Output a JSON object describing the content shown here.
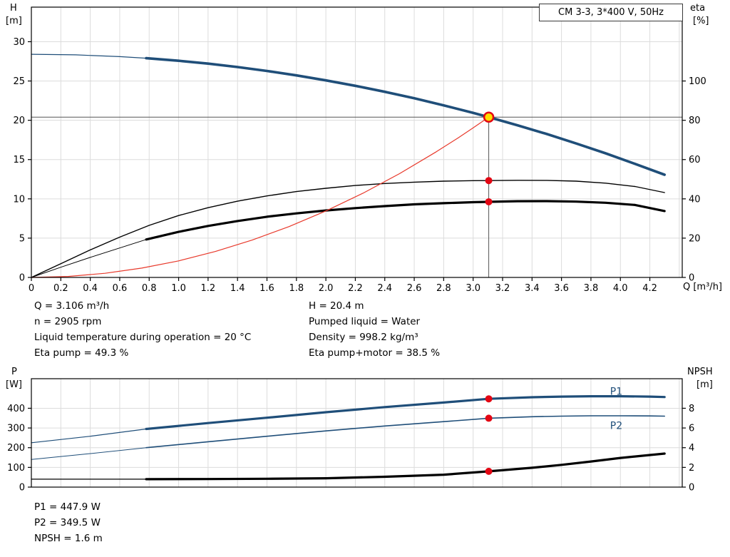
{
  "colors": {
    "curve_blue": "#1f4e79",
    "curve_black": "#000000",
    "system_red": "#e8392b",
    "marker_red": "#e30613",
    "duty_yellow": "#ffdd00",
    "grid": "#dcdcdc",
    "frame": "#000000",
    "crosshair": "#555555"
  },
  "operating_point_info": {
    "left": [
      "Q = 3.106 m³/h",
      "n = 2905 rpm",
      "Liquid temperature during operation = 20 °C",
      "Eta pump = 49.3 %"
    ],
    "right": [
      "H = 20.4 m",
      "Pumped liquid = Water",
      "Density = 998.2 kg/m³",
      "Eta pump+motor = 38.5 %"
    ]
  },
  "power_info": [
    "P1 = 447.9 W",
    "P2 = 349.5 W",
    "NPSH = 1.6 m"
  ],
  "chart_data": [
    {
      "type": "line",
      "name": "qh-eta-curves",
      "title": "CM 3-3, 3*400 V, 50Hz",
      "x_axis": {
        "label": "Q [m³/h]",
        "min": 0,
        "max": 4.42,
        "grid_step": 0.2,
        "tick_step": 0.2,
        "tick_max": 4.2
      },
      "y_left": {
        "label": "H [m]",
        "label_lines": [
          "H",
          "[m]"
        ],
        "min": 0,
        "max": 34.4,
        "ticks": [
          0,
          5,
          10,
          15,
          20,
          25,
          30
        ]
      },
      "y_right": {
        "label": "eta [%]",
        "label_lines": [
          "eta",
          "[%]"
        ],
        "min": 0,
        "max": 137.6,
        "ticks": [
          0,
          20,
          40,
          60,
          80,
          100
        ]
      },
      "duty_point": {
        "q": 3.106,
        "h": 20.4,
        "eta_pump": 49.3,
        "eta_pump_motor": 38.5
      },
      "ref_lines": [
        {
          "type": "v",
          "x": 3.106,
          "to": 20.4,
          "width": 1
        },
        {
          "type": "h",
          "y": 20.4,
          "width": 1
        }
      ],
      "series": [
        {
          "name": "pump-curve-extension",
          "axis": "left",
          "color": "#1f4e79",
          "width": 1.2,
          "points": [
            [
              0,
              28.4
            ],
            [
              0.3,
              28.33
            ],
            [
              0.6,
              28.1
            ],
            [
              0.78,
              27.9
            ]
          ]
        },
        {
          "name": "pump-curve",
          "axis": "left",
          "color": "#1f4e79",
          "width": 3.6,
          "points": [
            [
              0.78,
              27.9
            ],
            [
              1.0,
              27.57
            ],
            [
              1.2,
              27.21
            ],
            [
              1.4,
              26.78
            ],
            [
              1.6,
              26.28
            ],
            [
              1.8,
              25.71
            ],
            [
              2.0,
              25.08
            ],
            [
              2.2,
              24.39
            ],
            [
              2.4,
              23.63
            ],
            [
              2.6,
              22.8
            ],
            [
              2.8,
              21.9
            ],
            [
              3.0,
              20.94
            ],
            [
              3.106,
              20.4
            ],
            [
              3.3,
              19.37
            ],
            [
              3.5,
              18.25
            ],
            [
              3.7,
              17.05
            ],
            [
              3.9,
              15.79
            ],
            [
              4.1,
              14.45
            ],
            [
              4.3,
              13.07
            ]
          ]
        },
        {
          "name": "eta-pump-curve",
          "axis": "right",
          "color": "#000000",
          "width": 1.4,
          "points": [
            [
              0,
              0
            ],
            [
              0.2,
              7
            ],
            [
              0.4,
              14
            ],
            [
              0.6,
              20.5
            ],
            [
              0.8,
              26.5
            ],
            [
              1.0,
              31.5
            ],
            [
              1.2,
              35.5
            ],
            [
              1.4,
              38.8
            ],
            [
              1.6,
              41.5
            ],
            [
              1.8,
              43.7
            ],
            [
              2.0,
              45.4
            ],
            [
              2.2,
              46.8
            ],
            [
              2.4,
              47.8
            ],
            [
              2.6,
              48.5
            ],
            [
              2.8,
              49.0
            ],
            [
              3.0,
              49.25
            ],
            [
              3.106,
              49.3
            ],
            [
              3.3,
              49.45
            ],
            [
              3.5,
              49.4
            ],
            [
              3.7,
              49.0
            ],
            [
              3.9,
              48.0
            ],
            [
              4.1,
              46.3
            ],
            [
              4.3,
              43.2
            ]
          ]
        },
        {
          "name": "eta-pump-motor-extension",
          "axis": "right",
          "color": "#000000",
          "width": 1,
          "points": [
            [
              0,
              0
            ],
            [
              0.2,
              5.2
            ],
            [
              0.4,
              10.2
            ],
            [
              0.6,
              15.0
            ],
            [
              0.78,
              19.3
            ]
          ]
        },
        {
          "name": "eta-pump-motor-curve",
          "axis": "right",
          "color": "#000000",
          "width": 3.2,
          "points": [
            [
              0.78,
              19.3
            ],
            [
              1.0,
              23.2
            ],
            [
              1.2,
              26.2
            ],
            [
              1.4,
              28.7
            ],
            [
              1.6,
              30.9
            ],
            [
              1.8,
              32.6
            ],
            [
              2.0,
              34.1
            ],
            [
              2.2,
              35.3
            ],
            [
              2.4,
              36.3
            ],
            [
              2.6,
              37.2
            ],
            [
              2.8,
              37.8
            ],
            [
              3.0,
              38.3
            ],
            [
              3.106,
              38.5
            ],
            [
              3.3,
              38.8
            ],
            [
              3.5,
              38.85
            ],
            [
              3.7,
              38.6
            ],
            [
              3.9,
              38.0
            ],
            [
              4.1,
              36.9
            ],
            [
              4.3,
              33.8
            ]
          ]
        },
        {
          "name": "system-curve",
          "axis": "left",
          "color": "#e8392b",
          "width": 1.2,
          "points": [
            [
              0,
              0
            ],
            [
              0.25,
              0.13
            ],
            [
              0.5,
              0.53
            ],
            [
              0.75,
              1.19
            ],
            [
              1.0,
              2.11
            ],
            [
              1.25,
              3.3
            ],
            [
              1.5,
              4.76
            ],
            [
              1.75,
              6.47
            ],
            [
              2.0,
              8.46
            ],
            [
              2.25,
              10.7
            ],
            [
              2.5,
              13.21
            ],
            [
              2.75,
              15.99
            ],
            [
              2.9,
              17.78
            ],
            [
              3.0,
              19.03
            ],
            [
              3.106,
              20.4
            ]
          ]
        }
      ],
      "markers": [
        {
          "name": "eta-pump-point",
          "x": 3.106,
          "y": 49.3,
          "axis": "right",
          "r": 5,
          "fill": "#e30613"
        },
        {
          "name": "eta-pump-motor-point",
          "x": 3.106,
          "y": 38.5,
          "axis": "right",
          "r": 5,
          "fill": "#e30613"
        },
        {
          "name": "duty-point",
          "x": 3.106,
          "y": 20.4,
          "axis": "left",
          "r": 6.5,
          "fill": "#ffdd00",
          "stroke": "#e30613",
          "stroke_width": 2.5
        }
      ],
      "labels": []
    },
    {
      "type": "line",
      "name": "power-npsh-curves",
      "x_axis": {
        "label": "",
        "min": 0,
        "max": 4.42,
        "grid_step": 0.2,
        "tick_step": 0.2,
        "tick_max": 4.2
      },
      "y_left": {
        "label": "P [W]",
        "label_lines": [
          "P",
          "[W]"
        ],
        "min": 0,
        "max": 550,
        "ticks": [
          0,
          100,
          200,
          300,
          400
        ]
      },
      "y_right": {
        "label": "NPSH [m]",
        "label_lines": [
          "NPSH",
          "[m]"
        ],
        "min": 0,
        "max": 11,
        "ticks": [
          0,
          2,
          4,
          6,
          8
        ]
      },
      "duty_point": {
        "q": 3.106,
        "p1_w": 447.9,
        "p2_w": 349.5,
        "npsh_m": 1.6
      },
      "ref_lines": [],
      "series": [
        {
          "name": "p1-extension",
          "axis": "left",
          "color": "#1f4e79",
          "width": 1.2,
          "points": [
            [
              0,
              225
            ],
            [
              0.4,
              258
            ],
            [
              0.78,
              295
            ]
          ]
        },
        {
          "name": "p1-curve",
          "axis": "left",
          "color": "#1f4e79",
          "width": 3.2,
          "points": [
            [
              0.78,
              295
            ],
            [
              1.2,
              325
            ],
            [
              1.6,
              352
            ],
            [
              2.0,
              380
            ],
            [
              2.4,
              406
            ],
            [
              2.8,
              429
            ],
            [
              3.106,
              448
            ],
            [
              3.4,
              456
            ],
            [
              3.6,
              459
            ],
            [
              3.8,
              461
            ],
            [
              4.0,
              461
            ],
            [
              4.2,
              459
            ],
            [
              4.3,
              457
            ]
          ]
        },
        {
          "name": "p2-extension",
          "axis": "left",
          "color": "#1f4e79",
          "width": 1,
          "points": [
            [
              0,
              140
            ],
            [
              0.4,
              170
            ],
            [
              0.78,
              200
            ]
          ]
        },
        {
          "name": "p2-curve",
          "axis": "left",
          "color": "#1f4e79",
          "width": 1.6,
          "points": [
            [
              0.78,
              200
            ],
            [
              1.2,
              230
            ],
            [
              1.6,
              258
            ],
            [
              2.0,
              285
            ],
            [
              2.4,
              310
            ],
            [
              2.8,
              332
            ],
            [
              3.106,
              349.5
            ],
            [
              3.4,
              357
            ],
            [
              3.6,
              360
            ],
            [
              3.8,
              362
            ],
            [
              4.0,
              362
            ],
            [
              4.2,
              361
            ],
            [
              4.3,
              360
            ]
          ]
        },
        {
          "name": "npsh-extension",
          "axis": "right",
          "color": "#000000",
          "width": 1.2,
          "points": [
            [
              0,
              0.8
            ],
            [
              0.78,
              0.8
            ]
          ]
        },
        {
          "name": "npsh-curve",
          "axis": "right",
          "color": "#000000",
          "width": 3.2,
          "points": [
            [
              0.78,
              0.8
            ],
            [
              1.2,
              0.82
            ],
            [
              1.6,
              0.85
            ],
            [
              2.0,
              0.9
            ],
            [
              2.4,
              1.05
            ],
            [
              2.8,
              1.26
            ],
            [
              3.106,
              1.6
            ],
            [
              3.4,
              1.96
            ],
            [
              3.6,
              2.26
            ],
            [
              3.8,
              2.6
            ],
            [
              4.0,
              2.96
            ],
            [
              4.2,
              3.26
            ],
            [
              4.3,
              3.4
            ]
          ]
        }
      ],
      "markers": [
        {
          "name": "p1-point",
          "x": 3.106,
          "y": 448,
          "axis": "left",
          "r": 5,
          "fill": "#e30613"
        },
        {
          "name": "p2-point",
          "x": 3.106,
          "y": 349.5,
          "axis": "left",
          "r": 5,
          "fill": "#e30613"
        },
        {
          "name": "npsh-point",
          "x": 3.106,
          "y": 1.6,
          "axis": "right",
          "r": 5,
          "fill": "#e30613"
        }
      ],
      "labels": [
        {
          "text": "P1",
          "x": 3.93,
          "y": 468,
          "axis": "left",
          "color": "#1f4e79"
        },
        {
          "text": "P2",
          "x": 3.93,
          "y": 295,
          "axis": "left",
          "color": "#1f4e79"
        }
      ]
    }
  ]
}
